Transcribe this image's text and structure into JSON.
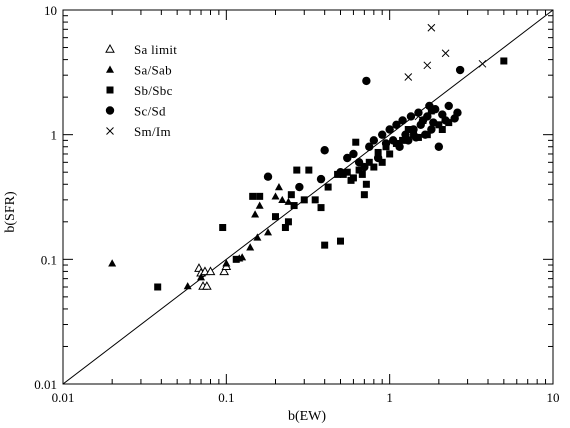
{
  "chart_data": {
    "type": "scatter",
    "x_scale": "log",
    "y_scale": "log",
    "xlim": [
      0.01,
      10
    ],
    "ylim": [
      0.01,
      10
    ],
    "xlabel": "b(EW)",
    "ylabel": "b(SFR)",
    "x_ticks": [
      {
        "value": 0.01,
        "label": "0.01"
      },
      {
        "value": 0.1,
        "label": "0.1"
      },
      {
        "value": 1,
        "label": "1"
      },
      {
        "value": 10,
        "label": "10"
      }
    ],
    "y_ticks": [
      {
        "value": 0.01,
        "label": "0.01"
      },
      {
        "value": 0.1,
        "label": "0.1"
      },
      {
        "value": 1,
        "label": "1"
      },
      {
        "value": 10,
        "label": "10"
      }
    ],
    "reference_line": {
      "x": [
        0.01,
        10
      ],
      "y": [
        0.01,
        10
      ]
    },
    "legend_position": "top-left",
    "series": [
      {
        "name": "Sa limit",
        "marker": "open-triangle",
        "points": [
          [
            0.068,
            0.085
          ],
          [
            0.07,
            0.078
          ],
          [
            0.072,
            0.061
          ],
          [
            0.074,
            0.08
          ],
          [
            0.076,
            0.061
          ],
          [
            0.08,
            0.08
          ],
          [
            0.097,
            0.08
          ],
          [
            0.1,
            0.088
          ]
        ]
      },
      {
        "name": "Sa/Sab",
        "marker": "filled-triangle",
        "points": [
          [
            0.02,
            0.093
          ],
          [
            0.058,
            0.061
          ],
          [
            0.07,
            0.072
          ],
          [
            0.1,
            0.093
          ],
          [
            0.12,
            0.102
          ],
          [
            0.125,
            0.104
          ],
          [
            0.14,
            0.125
          ],
          [
            0.15,
            0.23
          ],
          [
            0.155,
            0.15
          ],
          [
            0.16,
            0.27
          ],
          [
            0.18,
            0.165
          ],
          [
            0.2,
            0.32
          ],
          [
            0.21,
            0.38
          ],
          [
            0.22,
            0.3
          ],
          [
            0.24,
            0.29
          ]
        ]
      },
      {
        "name": "Sb/Sbc",
        "marker": "filled-square",
        "points": [
          [
            0.038,
            0.06
          ],
          [
            0.095,
            0.18
          ],
          [
            0.115,
            0.1
          ],
          [
            0.145,
            0.32
          ],
          [
            0.16,
            0.32
          ],
          [
            0.2,
            0.22
          ],
          [
            0.23,
            0.18
          ],
          [
            0.24,
            0.2
          ],
          [
            0.25,
            0.33
          ],
          [
            0.26,
            0.27
          ],
          [
            0.27,
            0.52
          ],
          [
            0.3,
            0.3
          ],
          [
            0.32,
            0.52
          ],
          [
            0.35,
            0.3
          ],
          [
            0.38,
            0.26
          ],
          [
            0.4,
            0.13
          ],
          [
            0.42,
            0.38
          ],
          [
            0.48,
            0.48
          ],
          [
            0.5,
            0.14
          ],
          [
            0.52,
            0.48
          ],
          [
            0.55,
            0.5
          ],
          [
            0.58,
            0.43
          ],
          [
            0.6,
            0.45
          ],
          [
            0.62,
            0.87
          ],
          [
            0.65,
            0.52
          ],
          [
            0.68,
            0.48
          ],
          [
            0.7,
            0.33
          ],
          [
            0.72,
            0.4
          ],
          [
            0.75,
            0.6
          ],
          [
            0.8,
            0.55
          ],
          [
            0.85,
            0.72
          ],
          [
            0.9,
            0.6
          ],
          [
            0.95,
            0.8
          ],
          [
            1.0,
            0.7
          ],
          [
            1.1,
            0.85
          ],
          [
            1.2,
            0.9
          ],
          [
            1.3,
            1.1
          ],
          [
            1.4,
            1.0
          ],
          [
            1.5,
            0.95
          ],
          [
            1.6,
            1.3
          ],
          [
            1.7,
            1.0
          ],
          [
            1.8,
            1.55
          ],
          [
            2.0,
            1.2
          ],
          [
            2.1,
            1.1
          ],
          [
            2.3,
            1.25
          ],
          [
            5.0,
            3.9
          ]
        ]
      },
      {
        "name": "Sc/Sd",
        "marker": "filled-circle",
        "points": [
          [
            0.18,
            0.46
          ],
          [
            0.28,
            0.38
          ],
          [
            0.38,
            0.44
          ],
          [
            0.4,
            0.75
          ],
          [
            0.5,
            0.5
          ],
          [
            0.55,
            0.65
          ],
          [
            0.6,
            0.7
          ],
          [
            0.65,
            0.6
          ],
          [
            0.7,
            0.55
          ],
          [
            0.72,
            2.7
          ],
          [
            0.75,
            0.8
          ],
          [
            0.8,
            0.9
          ],
          [
            0.85,
            0.65
          ],
          [
            0.9,
            1.0
          ],
          [
            0.95,
            0.85
          ],
          [
            1.0,
            1.1
          ],
          [
            1.05,
            0.9
          ],
          [
            1.1,
            1.2
          ],
          [
            1.15,
            0.8
          ],
          [
            1.2,
            1.3
          ],
          [
            1.25,
            1.0
          ],
          [
            1.3,
            0.9
          ],
          [
            1.35,
            1.4
          ],
          [
            1.4,
            1.1
          ],
          [
            1.45,
            0.95
          ],
          [
            1.5,
            1.5
          ],
          [
            1.55,
            1.2
          ],
          [
            1.6,
            1.3
          ],
          [
            1.65,
            1.0
          ],
          [
            1.7,
            1.4
          ],
          [
            1.75,
            1.7
          ],
          [
            1.8,
            1.1
          ],
          [
            1.85,
            1.25
          ],
          [
            1.9,
            1.6
          ],
          [
            2.0,
            0.8
          ],
          [
            2.1,
            1.45
          ],
          [
            2.2,
            1.3
          ],
          [
            2.3,
            1.7
          ],
          [
            2.5,
            1.35
          ],
          [
            2.6,
            1.5
          ],
          [
            2.7,
            3.3
          ]
        ]
      },
      {
        "name": "Sm/Im",
        "marker": "cross",
        "points": [
          [
            1.3,
            2.9
          ],
          [
            1.5,
            1.4
          ],
          [
            1.7,
            3.6
          ],
          [
            1.8,
            7.2
          ],
          [
            2.2,
            4.5
          ],
          [
            3.7,
            3.7
          ]
        ]
      }
    ]
  }
}
